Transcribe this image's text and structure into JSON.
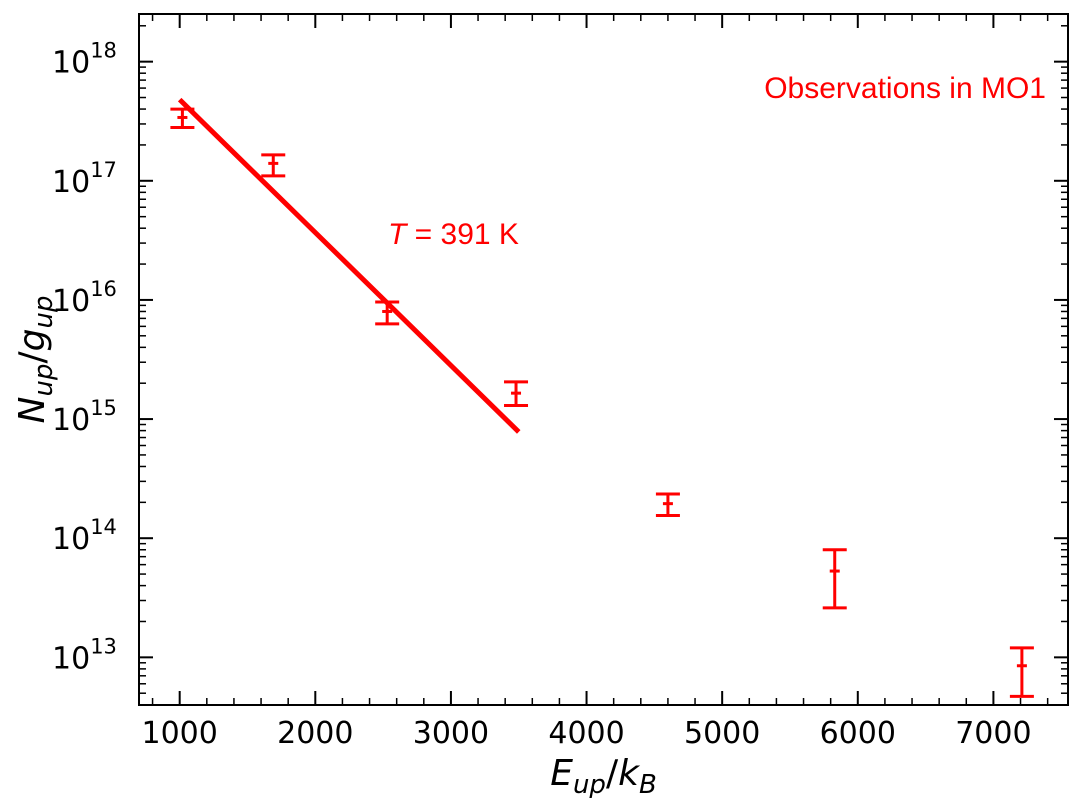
{
  "chart_data": {
    "type": "scatter",
    "title": "",
    "xlabel": "E_up/k_B",
    "ylabel": "N_up/g_up",
    "xlabel_parts": {
      "main1": "E",
      "sub1": "up",
      "slash": "/",
      "main2": "k",
      "sub2": "B"
    },
    "ylabel_parts": {
      "main1": "N",
      "sub1": "up",
      "slash": "/",
      "main2": "g",
      "sub2": "up"
    },
    "xlim": [
      700,
      7550
    ],
    "ylim_log10": [
      12.6,
      18.4
    ],
    "yscale": "log",
    "x_ticks": [
      1000,
      2000,
      3000,
      4000,
      5000,
      6000,
      7000
    ],
    "x_tick_labels": [
      "1000",
      "2000",
      "3000",
      "4000",
      "5000",
      "6000",
      "7000"
    ],
    "y_tick_exponents": [
      13,
      14,
      15,
      16,
      17,
      18
    ],
    "y_tick_exponent_labels": [
      "13",
      "14",
      "15",
      "16",
      "17",
      "18"
    ],
    "y_tick_base": "10",
    "series": [
      {
        "name": "Observations in MO1",
        "color": "#ff0000",
        "points": [
          {
            "x": 1020,
            "y": 3.4e+17,
            "ylo": 2.8e+17,
            "yhi": 4e+17
          },
          {
            "x": 1690,
            "y": 1.4e+17,
            "ylo": 1.1e+17,
            "yhi": 1.65e+17
          },
          {
            "x": 2530,
            "y": 8000000000000000.0,
            "ylo": 6300000000000000.0,
            "yhi": 9600000000000000.0
          },
          {
            "x": 3480,
            "y": 1650000000000000.0,
            "ylo": 1300000000000000.0,
            "yhi": 2050000000000000.0
          },
          {
            "x": 4600,
            "y": 195000000000000.0,
            "ylo": 155000000000000.0,
            "yhi": 235000000000000.0
          },
          {
            "x": 5830,
            "y": 53000000000000.0,
            "ylo": 26000000000000.0,
            "yhi": 80000000000000.0
          },
          {
            "x": 7210,
            "y": 8500000000000.0,
            "ylo": 4700000000000.0,
            "yhi": 12000000000000.0
          }
        ]
      }
    ],
    "fit_line": {
      "color": "#ff0000",
      "x": [
        1000,
        3500
      ],
      "y": [
        4.8e+17,
        780000000000000.0
      ],
      "label_var": "T",
      "label_rest": " = 391 K",
      "temperature_K": 391
    },
    "legend": {
      "text": "Observations in MO1",
      "placement": "top-right",
      "color": "#ff0000"
    },
    "grid": false
  }
}
